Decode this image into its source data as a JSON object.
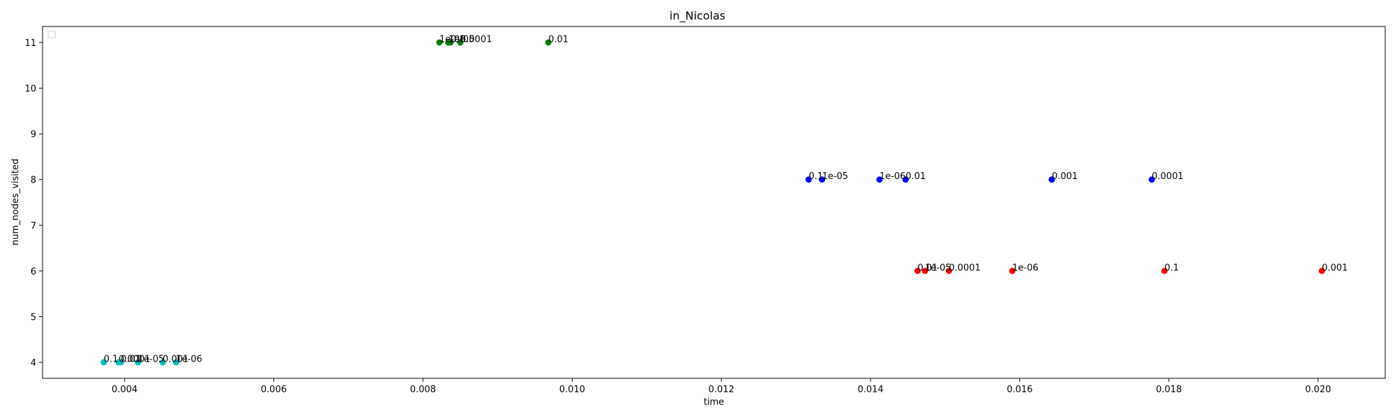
{
  "chart_data": {
    "type": "scatter",
    "title": "in_Nicolas",
    "xlabel": "time",
    "ylabel": "num_nodes_visited",
    "xlim": [
      0.0029,
      0.0209
    ],
    "ylim": [
      3.65,
      11.35
    ],
    "xticks": [
      0.004,
      0.006,
      0.008,
      0.01,
      0.012,
      0.014,
      0.016,
      0.018,
      0.02
    ],
    "xtick_labels": [
      "0.004",
      "0.006",
      "0.008",
      "0.010",
      "0.012",
      "0.014",
      "0.016",
      "0.018",
      "0.020"
    ],
    "yticks": [
      4,
      5,
      6,
      7,
      8,
      9,
      10,
      11
    ],
    "ytick_labels": [
      "4",
      "5",
      "6",
      "7",
      "8",
      "9",
      "10",
      "11"
    ],
    "grid": false,
    "legend": "top-left (empty)",
    "series": [
      {
        "color": "#008000",
        "points": [
          {
            "x": 0.00822,
            "y": 11,
            "label": "1e-06"
          },
          {
            "x": 0.00834,
            "y": 11,
            "label": "1e-05"
          },
          {
            "x": 0.00837,
            "y": 11,
            "label": "0.1"
          },
          {
            "x": 0.0085,
            "y": 11,
            "label": "0.0001"
          },
          {
            "x": 0.00968,
            "y": 11,
            "label": "0.01"
          }
        ]
      },
      {
        "color": "#0000ff",
        "points": [
          {
            "x": 0.01317,
            "y": 8,
            "label": "0.1"
          },
          {
            "x": 0.01335,
            "y": 8,
            "label": "1e-05"
          },
          {
            "x": 0.01412,
            "y": 8,
            "label": "1e-06"
          },
          {
            "x": 0.01447,
            "y": 8,
            "label": "0.01"
          },
          {
            "x": 0.01643,
            "y": 8,
            "label": "0.001"
          },
          {
            "x": 0.01777,
            "y": 8,
            "label": "0.0001"
          }
        ]
      },
      {
        "color": "#ff0000",
        "points": [
          {
            "x": 0.01463,
            "y": 6,
            "label": "0.01"
          },
          {
            "x": 0.01473,
            "y": 6,
            "label": "1e-05"
          },
          {
            "x": 0.01505,
            "y": 6,
            "label": "0.0001"
          },
          {
            "x": 0.0159,
            "y": 6,
            "label": "1e-06"
          },
          {
            "x": 0.01794,
            "y": 6,
            "label": "0.1"
          },
          {
            "x": 0.02005,
            "y": 6,
            "label": "0.001"
          }
        ]
      },
      {
        "color": "#00bfbf",
        "points": [
          {
            "x": 0.00372,
            "y": 4,
            "label": "0.1"
          },
          {
            "x": 0.00392,
            "y": 4,
            "label": "0.0001"
          },
          {
            "x": 0.00395,
            "y": 4,
            "label": "0.01"
          },
          {
            "x": 0.00418,
            "y": 4,
            "label": "1e-05"
          },
          {
            "x": 0.00451,
            "y": 4,
            "label": "0.001"
          },
          {
            "x": 0.00469,
            "y": 4,
            "label": "1e-06"
          }
        ]
      }
    ]
  }
}
